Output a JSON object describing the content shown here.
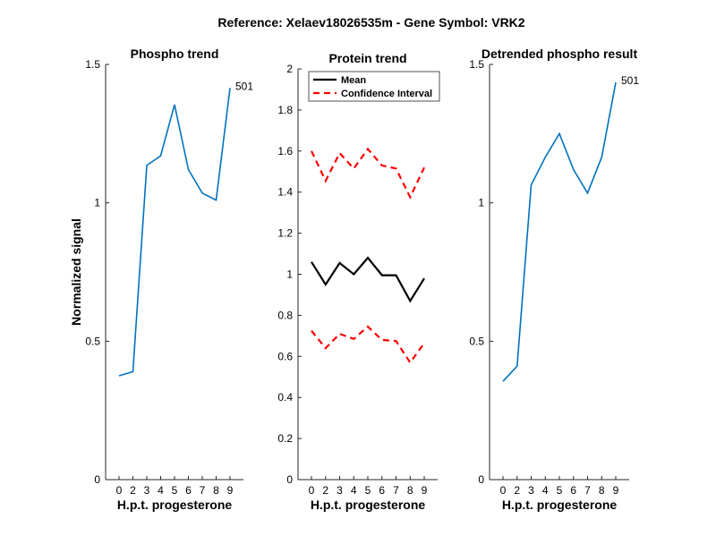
{
  "figure": {
    "suptitle": "Reference:  Xelaev18026535m - Gene Symbol:  VRK2"
  },
  "chart_data": [
    {
      "type": "line",
      "title": "Phospho trend",
      "xlabel": "H.p.t. progesterone",
      "ylabel": "Normalized signal",
      "categories": [
        "0",
        "2",
        "3",
        "4",
        "5",
        "6",
        "7",
        "8",
        "9"
      ],
      "ylim": [
        0,
        1.5
      ],
      "yticks": [
        "0",
        "0.5",
        "1",
        "1.5"
      ],
      "series": [
        {
          "values": [
            0.375,
            0.39,
            1.135,
            1.17,
            1.355,
            1.12,
            1.035,
            1.01,
            1.415
          ],
          "color": "#0072BD",
          "style": "solid"
        }
      ],
      "annotation": {
        "text": "501",
        "at_index": 8
      },
      "grid": false
    },
    {
      "type": "line",
      "title": "Protein trend",
      "xlabel": "H.p.t. progesterone",
      "ylabel": "",
      "categories": [
        "0",
        "2",
        "3",
        "4",
        "5",
        "6",
        "7",
        "8",
        "9"
      ],
      "ylim": [
        0,
        2
      ],
      "yticks": [
        "0",
        "0.2",
        "0.4",
        "0.6",
        "0.8",
        "1",
        "1.2",
        "1.4",
        "1.6",
        "1.8",
        "2"
      ],
      "series": [
        {
          "name": "Mean",
          "values": [
            1.06,
            0.95,
            1.055,
            1.0,
            1.08,
            0.995,
            0.995,
            0.87,
            0.98
          ],
          "color": "#000000",
          "style": "solid"
        },
        {
          "name": "Confidence Interval",
          "values": [
            1.6,
            1.455,
            1.59,
            1.515,
            1.61,
            1.53,
            1.515,
            1.375,
            1.52
          ],
          "color": "#FF0000",
          "style": "dashed"
        },
        {
          "values": [
            0.725,
            0.64,
            0.71,
            0.685,
            0.745,
            0.68,
            0.675,
            0.57,
            0.665
          ],
          "color": "#FF0000",
          "style": "dashed"
        }
      ],
      "legend": {
        "placement": "top-left",
        "entries": [
          "Mean",
          "Confidence Interval"
        ]
      },
      "grid": false
    },
    {
      "type": "line",
      "title": "Detrended phospho result",
      "xlabel": "H.p.t. progesterone",
      "ylabel": "",
      "categories": [
        "0",
        "2",
        "3",
        "4",
        "5",
        "6",
        "7",
        "8",
        "9"
      ],
      "ylim": [
        0,
        1.5
      ],
      "yticks": [
        "0",
        "0.5",
        "1",
        "1.5"
      ],
      "series": [
        {
          "values": [
            0.355,
            0.41,
            1.065,
            1.165,
            1.25,
            1.12,
            1.035,
            1.165,
            1.435
          ],
          "color": "#0072BD",
          "style": "solid"
        }
      ],
      "annotation": {
        "text": "501",
        "at_index": 8
      },
      "grid": false
    }
  ]
}
